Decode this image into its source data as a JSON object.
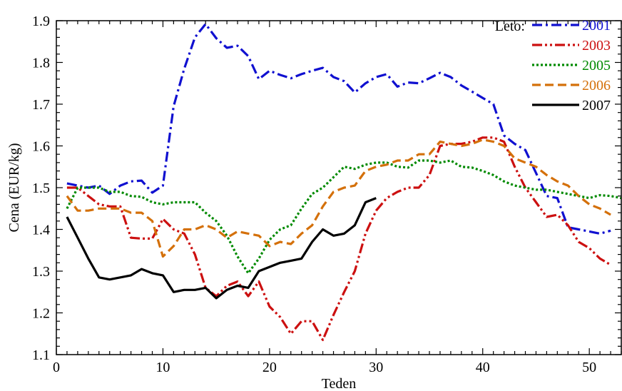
{
  "chart_data": {
    "type": "line",
    "xlabel": "Teden",
    "ylabel": "Cena (EUR/kg)",
    "xlim": [
      0,
      53
    ],
    "ylim": [
      1.1,
      1.9
    ],
    "xticks": [
      0,
      10,
      20,
      30,
      40,
      50
    ],
    "yticks": [
      1.1,
      1.2,
      1.3,
      1.4,
      1.5,
      1.6,
      1.7,
      1.8,
      1.9
    ],
    "x_tick_labels": [
      "0",
      "10",
      "20",
      "30",
      "40",
      "50"
    ],
    "y_tick_labels": [
      "1.1",
      "1.2",
      "1.3",
      "1.4",
      "1.5",
      "1.6",
      "1.7",
      "1.8",
      "1.9"
    ],
    "grid": false,
    "legend": {
      "title": "Leto:",
      "placement": "top-right"
    },
    "series": [
      {
        "name": "2001",
        "color": "#1010d0",
        "style": "dash-dot",
        "x": [
          1,
          2,
          3,
          4,
          5,
          6,
          7,
          8,
          9,
          10,
          11,
          12,
          13,
          14,
          15,
          16,
          17,
          18,
          19,
          20,
          21,
          22,
          23,
          24,
          25,
          26,
          27,
          28,
          29,
          30,
          31,
          32,
          33,
          34,
          35,
          36,
          37,
          38,
          39,
          40,
          41,
          42,
          43,
          44,
          45,
          46,
          47,
          48,
          49,
          50,
          51,
          52
        ],
        "y": [
          1.51,
          1.505,
          1.5,
          1.505,
          1.485,
          1.505,
          1.515,
          1.517,
          1.488,
          1.505,
          1.695,
          1.785,
          1.86,
          1.892,
          1.858,
          1.835,
          1.84,
          1.815,
          1.76,
          1.78,
          1.77,
          1.762,
          1.772,
          1.78,
          1.787,
          1.765,
          1.755,
          1.728,
          1.75,
          1.765,
          1.772,
          1.742,
          1.752,
          1.75,
          1.762,
          1.775,
          1.765,
          1.745,
          1.73,
          1.715,
          1.7,
          1.625,
          1.605,
          1.59,
          1.535,
          1.48,
          1.475,
          1.405,
          1.4,
          1.395,
          1.39,
          1.397
        ]
      },
      {
        "name": "2003",
        "color": "#cc1010",
        "style": "dash-dot-dot",
        "x": [
          1,
          2,
          3,
          4,
          5,
          6,
          7,
          8,
          9,
          10,
          11,
          12,
          13,
          14,
          15,
          16,
          17,
          18,
          19,
          20,
          21,
          22,
          23,
          24,
          25,
          26,
          27,
          28,
          29,
          30,
          31,
          32,
          33,
          34,
          35,
          36,
          37,
          38,
          39,
          40,
          41,
          42,
          43,
          44,
          45,
          46,
          47,
          48,
          49,
          50,
          51,
          52
        ],
        "y": [
          1.5,
          1.5,
          1.48,
          1.46,
          1.455,
          1.455,
          1.38,
          1.378,
          1.378,
          1.425,
          1.4,
          1.39,
          1.34,
          1.26,
          1.24,
          1.265,
          1.275,
          1.24,
          1.275,
          1.215,
          1.19,
          1.15,
          1.18,
          1.18,
          1.135,
          1.195,
          1.25,
          1.3,
          1.39,
          1.445,
          1.475,
          1.49,
          1.5,
          1.5,
          1.53,
          1.6,
          1.605,
          1.605,
          1.61,
          1.62,
          1.62,
          1.61,
          1.55,
          1.5,
          1.465,
          1.43,
          1.435,
          1.41,
          1.37,
          1.355,
          1.33,
          1.315
        ]
      },
      {
        "name": "2005",
        "color": "#008a00",
        "style": "dotted",
        "x": [
          1,
          2,
          3,
          4,
          5,
          6,
          7,
          8,
          9,
          10,
          11,
          12,
          13,
          14,
          15,
          16,
          17,
          18,
          19,
          20,
          21,
          22,
          23,
          24,
          25,
          26,
          27,
          28,
          29,
          30,
          31,
          32,
          33,
          34,
          35,
          36,
          37,
          38,
          39,
          40,
          41,
          42,
          43,
          44,
          45,
          46,
          47,
          48,
          49,
          50,
          51,
          52,
          53
        ],
        "y": [
          1.45,
          1.5,
          1.5,
          1.5,
          1.49,
          1.49,
          1.48,
          1.478,
          1.465,
          1.46,
          1.465,
          1.465,
          1.465,
          1.44,
          1.42,
          1.385,
          1.335,
          1.295,
          1.33,
          1.375,
          1.4,
          1.41,
          1.45,
          1.485,
          1.5,
          1.525,
          1.55,
          1.545,
          1.555,
          1.56,
          1.56,
          1.55,
          1.548,
          1.565,
          1.565,
          1.56,
          1.565,
          1.55,
          1.548,
          1.54,
          1.53,
          1.515,
          1.505,
          1.5,
          1.495,
          1.495,
          1.49,
          1.485,
          1.48,
          1.475,
          1.482,
          1.48,
          1.475
        ]
      },
      {
        "name": "2006",
        "color": "#d4700a",
        "style": "dashed",
        "x": [
          1,
          2,
          3,
          4,
          5,
          6,
          7,
          8,
          9,
          10,
          11,
          12,
          13,
          14,
          15,
          16,
          17,
          18,
          19,
          20,
          21,
          22,
          23,
          24,
          25,
          26,
          27,
          28,
          29,
          30,
          31,
          32,
          33,
          34,
          35,
          36,
          37,
          38,
          39,
          40,
          41,
          42,
          43,
          44,
          45,
          46,
          47,
          48,
          49,
          50,
          51,
          52
        ],
        "y": [
          1.48,
          1.445,
          1.445,
          1.45,
          1.45,
          1.45,
          1.44,
          1.44,
          1.42,
          1.335,
          1.36,
          1.4,
          1.4,
          1.41,
          1.4,
          1.38,
          1.395,
          1.39,
          1.385,
          1.36,
          1.37,
          1.365,
          1.39,
          1.41,
          1.455,
          1.49,
          1.5,
          1.505,
          1.54,
          1.55,
          1.555,
          1.565,
          1.565,
          1.58,
          1.58,
          1.61,
          1.605,
          1.6,
          1.605,
          1.615,
          1.61,
          1.6,
          1.57,
          1.56,
          1.55,
          1.53,
          1.515,
          1.505,
          1.48,
          1.46,
          1.45,
          1.435
        ]
      },
      {
        "name": "2007",
        "color": "#000000",
        "style": "solid",
        "x": [
          1,
          2,
          3,
          4,
          5,
          6,
          7,
          8,
          9,
          10,
          11,
          12,
          13,
          14,
          15,
          16,
          17,
          18,
          19,
          20,
          21,
          22,
          23,
          24,
          25,
          26,
          27,
          28,
          29,
          30
        ],
        "y": [
          1.43,
          1.38,
          1.33,
          1.285,
          1.28,
          1.285,
          1.29,
          1.305,
          1.295,
          1.29,
          1.25,
          1.255,
          1.255,
          1.26,
          1.235,
          1.255,
          1.265,
          1.26,
          1.3,
          1.31,
          1.32,
          1.325,
          1.33,
          1.37,
          1.4,
          1.385,
          1.39,
          1.41,
          1.465,
          1.475
        ]
      }
    ]
  }
}
